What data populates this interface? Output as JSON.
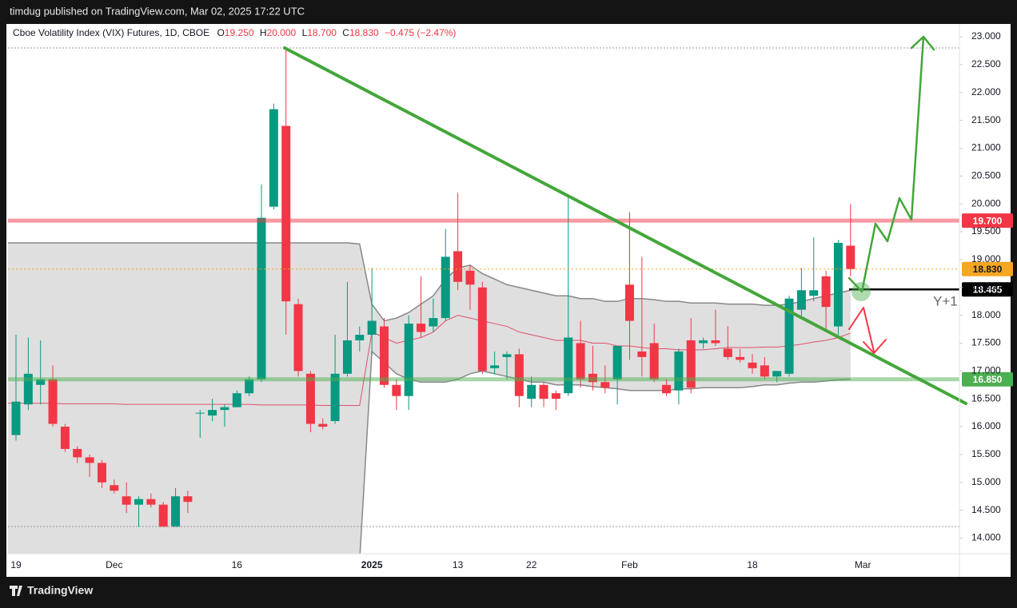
{
  "page_header": "timdug published on TradingView.com, Mar 02, 2025 17:22 UTC",
  "footer_logo": "TradingView",
  "chart_data": {
    "type": "candlestick",
    "title": "Cboe Volatility Index (VIX) Futures, 1D, CBOE",
    "ohlc_header": {
      "o_label": "O",
      "o": "19.250",
      "h_label": "H",
      "h": "20.000",
      "l_label": "L",
      "l": "18.700",
      "c_label": "C",
      "c": "18.830",
      "change": "−0.475 (−2.47%)"
    },
    "categories": [
      "19",
      null,
      null,
      null,
      null,
      null,
      null,
      null,
      "Dec",
      null,
      null,
      null,
      null,
      null,
      null,
      null,
      null,
      null,
      "16",
      null,
      null,
      null,
      null,
      null,
      null,
      null,
      null,
      null,
      null,
      "2025",
      null,
      null,
      null,
      null,
      null,
      null,
      "13",
      null,
      null,
      null,
      null,
      null,
      "22",
      null,
      null,
      null,
      null,
      null,
      null,
      null,
      "Feb",
      null,
      null,
      null,
      null,
      null,
      null,
      null,
      null,
      null,
      "18",
      null,
      null,
      null,
      null,
      null,
      null,
      null,
      null,
      "Mar"
    ],
    "open": [
      15.85,
      16.4,
      16.75,
      16.85,
      16.0,
      15.6,
      15.45,
      15.35,
      14.95,
      14.75,
      14.6,
      14.7,
      14.6,
      14.2,
      14.75,
      16.25,
      16.2,
      16.3,
      16.35,
      16.6,
      16.85,
      19.95,
      21.4,
      18.2,
      16.95,
      16.05,
      16.1,
      16.95,
      17.55,
      17.65,
      17.8,
      16.75,
      16.55,
      17.85,
      17.8,
      17.95,
      19.15,
      18.8,
      18.5,
      17.05,
      17.25,
      17.3,
      16.5,
      16.75,
      16.6,
      16.6,
      17.5,
      16.95,
      16.8,
      16.85,
      18.55,
      17.35,
      17.5,
      16.75,
      16.65,
      17.55,
      17.5,
      17.55,
      17.4,
      17.25,
      17.15,
      17.1,
      16.9,
      16.95,
      18.1,
      18.35,
      18.7,
      17.8,
      19.25,
      null
    ],
    "high": [
      17.65,
      17.6,
      17.55,
      17.1,
      16.05,
      15.65,
      15.5,
      15.4,
      15.05,
      15.0,
      14.75,
      14.8,
      14.65,
      14.9,
      14.85,
      16.3,
      16.5,
      16.4,
      16.65,
      16.9,
      20.35,
      21.8,
      22.8,
      18.3,
      17.0,
      16.15,
      17.65,
      18.6,
      17.8,
      18.85,
      17.95,
      16.85,
      18.0,
      18.7,
      18.3,
      19.55,
      20.2,
      18.9,
      18.6,
      17.35,
      17.35,
      17.4,
      16.9,
      16.8,
      16.65,
      20.15,
      17.9,
      17.45,
      17.1,
      17.45,
      19.85,
      19.05,
      17.85,
      16.85,
      17.4,
      17.95,
      17.6,
      18.1,
      17.8,
      17.4,
      17.3,
      17.25,
      17.0,
      18.35,
      18.85,
      19.4,
      18.8,
      19.35,
      20.0,
      null
    ],
    "low": [
      15.75,
      16.3,
      16.4,
      16.0,
      15.55,
      15.35,
      15.1,
      14.9,
      14.8,
      14.45,
      14.2,
      14.55,
      14.2,
      14.2,
      14.45,
      15.8,
      16.1,
      16.0,
      16.35,
      16.55,
      16.8,
      19.9,
      17.65,
      16.9,
      15.9,
      15.95,
      16.05,
      16.9,
      17.35,
      17.3,
      16.7,
      16.3,
      16.3,
      17.6,
      17.7,
      17.9,
      18.45,
      18.1,
      16.95,
      16.95,
      16.85,
      16.35,
      16.35,
      16.35,
      16.3,
      16.55,
      16.7,
      16.65,
      16.6,
      16.4,
      17.2,
      16.9,
      16.8,
      16.55,
      16.4,
      16.6,
      17.4,
      17.45,
      17.2,
      17.15,
      16.95,
      16.85,
      16.8,
      16.9,
      17.95,
      18.25,
      17.75,
      17.65,
      18.7,
      null
    ],
    "close": [
      16.45,
      16.95,
      16.85,
      16.05,
      15.6,
      15.45,
      15.35,
      15.0,
      14.85,
      14.6,
      14.7,
      14.6,
      14.2,
      14.75,
      14.65,
      16.25,
      16.3,
      16.35,
      16.6,
      16.85,
      19.75,
      21.7,
      18.25,
      17.0,
      16.05,
      16.0,
      16.95,
      17.55,
      17.65,
      17.9,
      16.75,
      16.55,
      17.85,
      17.7,
      17.95,
      19.05,
      18.6,
      18.55,
      17.0,
      17.1,
      17.3,
      16.55,
      16.75,
      16.5,
      16.5,
      17.6,
      16.85,
      16.8,
      16.7,
      17.45,
      17.9,
      17.25,
      16.85,
      16.6,
      17.35,
      16.7,
      17.55,
      17.5,
      17.25,
      17.2,
      17.05,
      16.9,
      17.0,
      18.3,
      18.45,
      18.45,
      18.15,
      19.3,
      18.83,
      null
    ],
    "up_color": "#089981",
    "down_color": "#f23645",
    "bands": {
      "color": "#888888",
      "fill": "rgba(150,150,150,0.3)",
      "middle_color": "#e0506a",
      "upper": [
        19.3,
        19.3,
        19.3,
        19.3,
        19.3,
        19.3,
        19.3,
        19.3,
        19.3,
        19.3,
        19.3,
        19.3,
        19.3,
        19.3,
        19.3,
        19.3,
        19.3,
        19.3,
        19.3,
        19.3,
        19.3,
        19.3,
        19.3,
        19.3,
        19.3,
        19.3,
        19.3,
        19.3,
        19.28,
        18.2,
        17.9,
        17.95,
        18.05,
        18.2,
        18.35,
        18.65,
        18.85,
        18.9,
        18.75,
        18.65,
        18.55,
        18.5,
        18.45,
        18.4,
        18.35,
        18.35,
        18.3,
        18.3,
        18.25,
        18.25,
        18.3,
        18.3,
        18.28,
        18.25,
        18.25,
        18.22,
        18.22,
        18.22,
        18.2,
        18.2,
        18.2,
        18.18,
        18.18,
        18.2,
        18.25,
        18.3,
        18.35,
        18.4,
        18.45,
        null
      ],
      "lower": [
        13.6,
        13.6,
        13.6,
        13.6,
        13.6,
        13.6,
        13.6,
        13.6,
        13.6,
        13.6,
        13.6,
        13.6,
        13.6,
        13.6,
        13.6,
        13.6,
        13.6,
        13.6,
        13.6,
        13.6,
        13.6,
        13.6,
        13.6,
        13.6,
        13.6,
        13.6,
        13.6,
        13.6,
        13.6,
        17.35,
        17.15,
        16.95,
        16.85,
        16.8,
        16.8,
        16.8,
        16.85,
        16.95,
        17.0,
        16.95,
        16.9,
        16.85,
        16.8,
        16.8,
        16.75,
        16.75,
        16.75,
        16.72,
        16.7,
        16.68,
        16.65,
        16.65,
        16.65,
        16.65,
        16.68,
        16.68,
        16.7,
        16.7,
        16.7,
        16.7,
        16.72,
        16.75,
        16.75,
        16.78,
        16.8,
        16.8,
        16.82,
        16.84,
        16.85,
        null
      ],
      "middle": [
        16.42,
        16.42,
        16.42,
        16.42,
        16.41,
        16.41,
        16.41,
        16.41,
        16.41,
        16.4,
        16.4,
        16.4,
        16.4,
        16.4,
        16.4,
        16.4,
        16.4,
        16.4,
        16.4,
        16.4,
        16.39,
        16.39,
        16.39,
        16.39,
        16.39,
        16.38,
        16.38,
        16.38,
        16.38,
        17.7,
        17.6,
        17.5,
        17.55,
        17.6,
        17.7,
        17.9,
        18.0,
        17.95,
        17.9,
        17.85,
        17.8,
        17.7,
        17.65,
        17.6,
        17.55,
        17.55,
        17.55,
        17.5,
        17.5,
        17.45,
        17.45,
        17.42,
        17.4,
        17.4,
        17.38,
        17.38,
        17.38,
        17.4,
        17.42,
        17.42,
        17.42,
        17.43,
        17.43,
        17.45,
        17.48,
        17.52,
        17.55,
        17.6,
        17.68,
        null
      ]
    },
    "ylim": [
      13.72,
      23.23
    ],
    "yticks": [
      {
        "value": 14,
        "label": "14.000"
      },
      {
        "value": 14.5,
        "label": "14.500"
      },
      {
        "value": 15,
        "label": "15.000"
      },
      {
        "value": 15.5,
        "label": "15.500"
      },
      {
        "value": 16,
        "label": "16.000"
      },
      {
        "value": 16.5,
        "label": "16.500"
      },
      {
        "value": 17,
        "label": "17.000"
      },
      {
        "value": 17.5,
        "label": "17.500"
      },
      {
        "value": 18,
        "label": "18.000"
      },
      {
        "value": 18.5,
        "label": "18.500"
      },
      {
        "value": 19,
        "label": "19.000"
      },
      {
        "value": 19.5,
        "label": "19.500"
      },
      {
        "value": 20,
        "label": "20.000"
      },
      {
        "value": 20.5,
        "label": "20.500"
      },
      {
        "value": 21,
        "label": "21.000"
      },
      {
        "value": 21.5,
        "label": "21.500"
      },
      {
        "value": 22,
        "label": "22.000"
      },
      {
        "value": 22.5,
        "label": "22.500"
      },
      {
        "value": 23,
        "label": "23.000"
      }
    ],
    "grid": false,
    "price_lines": [
      {
        "value": 19.7,
        "label": "19.700",
        "color": "#f23645",
        "style": "band"
      },
      {
        "value": 18.83,
        "label": "18.830",
        "color": "#f5a623",
        "style": "dotted"
      },
      {
        "value": 18.465,
        "label": "18.465",
        "color": "#000000",
        "style": "short"
      },
      {
        "value": 16.85,
        "label": "16.850",
        "color": "#4caf50",
        "style": "band"
      }
    ],
    "annotations": [
      "Y+1"
    ]
  }
}
